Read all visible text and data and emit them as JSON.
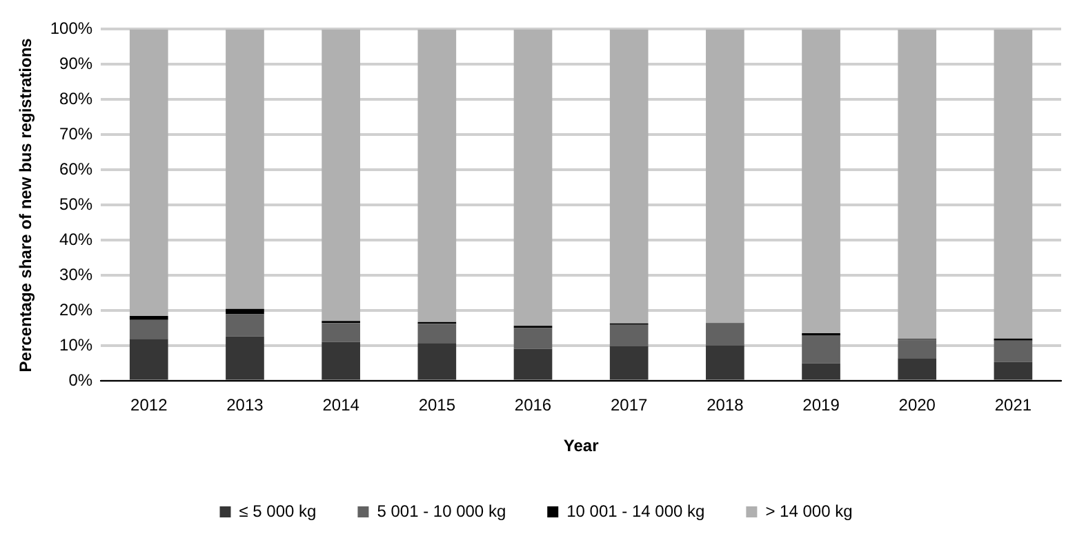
{
  "chart_data": {
    "type": "bar",
    "stacked": true,
    "xlabel": "Year",
    "ylabel": "Percentage share of new bus registrations",
    "categories": [
      "2012",
      "2013",
      "2014",
      "2015",
      "2016",
      "2017",
      "2018",
      "2019",
      "2020",
      "2021"
    ],
    "series": [
      {
        "name": "≤ 5 000 kg",
        "color": "#363636",
        "values": [
          12.0,
          12.7,
          11.1,
          10.8,
          9.2,
          9.9,
          10.1,
          5.1,
          6.5,
          5.4
        ]
      },
      {
        "name": "5 001 - 10 000 kg",
        "color": "#626262",
        "values": [
          5.4,
          6.3,
          5.4,
          5.5,
          5.9,
          6.1,
          6.3,
          7.9,
          5.3,
          6.1
        ]
      },
      {
        "name": "10 001 - 14 000 kg",
        "color": "#000000",
        "values": [
          1.1,
          1.5,
          0.6,
          0.5,
          0.6,
          0.4,
          0.1,
          0.6,
          0.2,
          0.6
        ]
      },
      {
        "name": "> 14 000 kg",
        "color": "#b0b0b0",
        "values": [
          81.5,
          79.5,
          82.9,
          83.2,
          84.3,
          83.6,
          83.5,
          86.4,
          88.0,
          87.9
        ]
      }
    ],
    "ylim": [
      0,
      100
    ],
    "yticks": [
      {
        "value": 0,
        "label": "0%"
      },
      {
        "value": 10,
        "label": "10%"
      },
      {
        "value": 20,
        "label": "20%"
      },
      {
        "value": 30,
        "label": "30%"
      },
      {
        "value": 40,
        "label": "40%"
      },
      {
        "value": 50,
        "label": "50%"
      },
      {
        "value": 60,
        "label": "60%"
      },
      {
        "value": 70,
        "label": "70%"
      },
      {
        "value": 80,
        "label": "80%"
      },
      {
        "value": 90,
        "label": "90%"
      },
      {
        "value": 100,
        "label": "100%"
      }
    ],
    "grid": "y",
    "legend": "bottom"
  }
}
